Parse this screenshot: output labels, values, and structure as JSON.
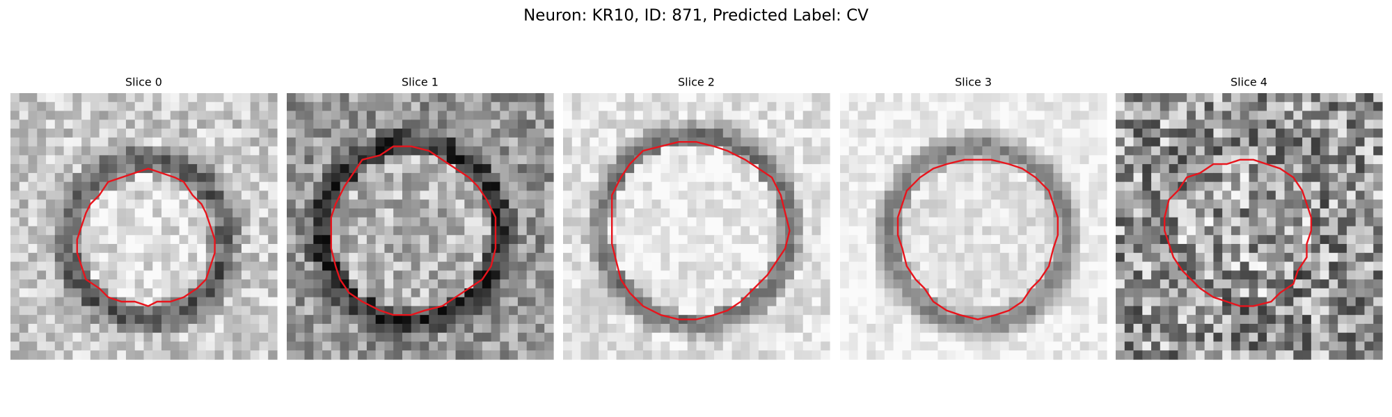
{
  "title": "Neuron: KR10, ID: 871, Predicted Label: CV",
  "panels": [
    {
      "title": "Slice 0"
    },
    {
      "title": "Slice 1"
    },
    {
      "title": "Slice 2"
    },
    {
      "title": "Slice 3"
    },
    {
      "title": "Slice 4"
    }
  ]
}
